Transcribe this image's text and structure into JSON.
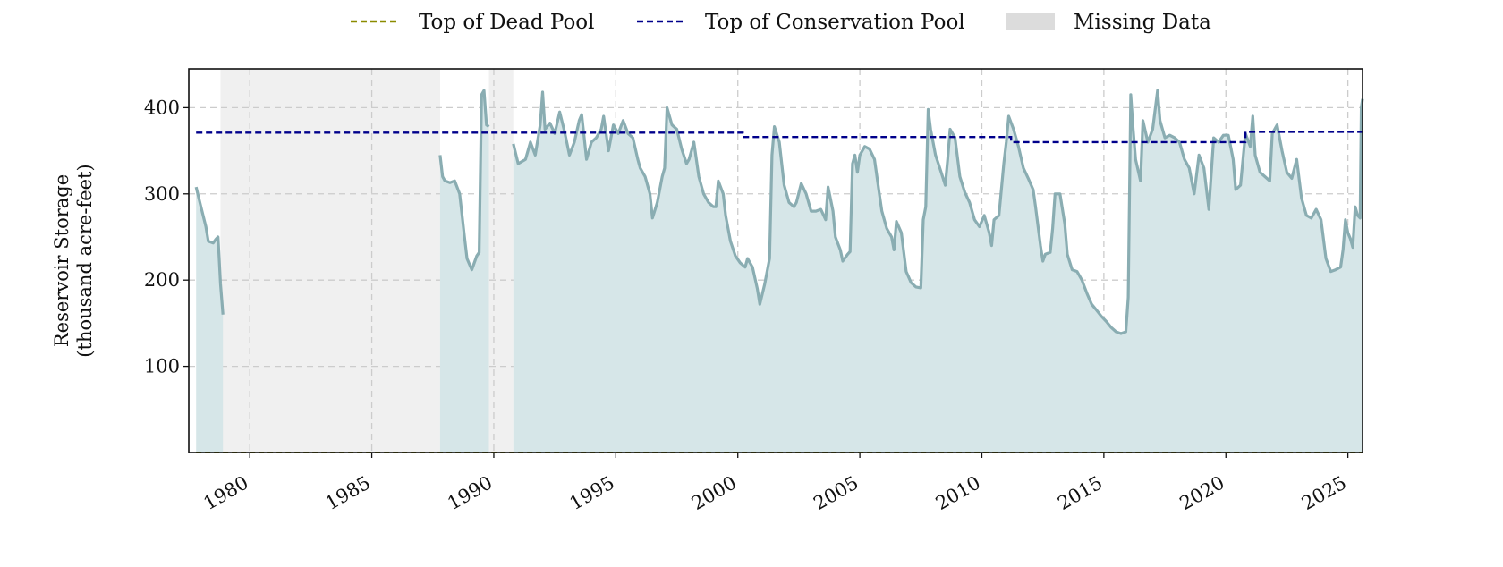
{
  "chart_data": {
    "type": "area",
    "ylabel_lines": [
      "Reservoir Storage",
      "(thousand acre-feet)"
    ],
    "xlim": [
      1977.5,
      2025.6
    ],
    "ylim": [
      0,
      445
    ],
    "x_ticks": [
      1980,
      1985,
      1990,
      1995,
      2000,
      2005,
      2010,
      2015,
      2020,
      2025
    ],
    "y_ticks": [
      100,
      200,
      300,
      400
    ],
    "grid": true,
    "legend_position": "top-center",
    "legend": [
      {
        "label": "Top of Dead Pool",
        "kind": "dash",
        "color": "#8b8b00"
      },
      {
        "label": "Top of Conservation Pool",
        "kind": "dash",
        "color": "#00008b"
      },
      {
        "label": "Missing Data",
        "kind": "box",
        "color": "#dcdcdc"
      }
    ],
    "colors": {
      "storage_line": "#8aadb2",
      "storage_fill": "#d6e6e8",
      "missing_fill": "#f0f0f0",
      "grid": "#cccccc"
    },
    "missing_data_ranges": [
      [
        1978.8,
        1987.8
      ],
      [
        1989.8,
        1990.8
      ]
    ],
    "series": [
      {
        "segments": [
          [
            [
              1977.8,
              308
            ],
            [
              1978.0,
              285
            ],
            [
              1978.2,
              262
            ],
            [
              1978.3,
              245
            ],
            [
              1978.5,
              243
            ],
            [
              1978.6,
              247
            ],
            [
              1978.7,
              250
            ],
            [
              1978.8,
              195
            ],
            [
              1978.9,
              160
            ]
          ],
          [
            [
              1987.8,
              345
            ],
            [
              1987.9,
              320
            ],
            [
              1988.0,
              315
            ],
            [
              1988.2,
              313
            ],
            [
              1988.4,
              315
            ],
            [
              1988.6,
              300
            ],
            [
              1988.8,
              250
            ],
            [
              1988.9,
              225
            ],
            [
              1989.1,
              212
            ],
            [
              1989.3,
              228
            ],
            [
              1989.4,
              232
            ],
            [
              1989.5,
              415
            ],
            [
              1989.6,
              420
            ],
            [
              1989.7,
              380
            ],
            [
              1989.8,
              378
            ]
          ],
          [
            [
              1990.8,
              358
            ],
            [
              1991.0,
              335
            ],
            [
              1991.3,
              340
            ],
            [
              1991.5,
              360
            ],
            [
              1991.7,
              345
            ],
            [
              1991.9,
              380
            ],
            [
              1992.0,
              418
            ],
            [
              1992.1,
              375
            ],
            [
              1992.3,
              382
            ],
            [
              1992.5,
              370
            ],
            [
              1992.7,
              395
            ],
            [
              1992.9,
              372
            ],
            [
              1993.1,
              345
            ],
            [
              1993.3,
              360
            ],
            [
              1993.5,
              385
            ],
            [
              1993.6,
              392
            ],
            [
              1993.8,
              340
            ],
            [
              1994.0,
              360
            ],
            [
              1994.2,
              365
            ],
            [
              1994.4,
              375
            ],
            [
              1994.5,
              390
            ],
            [
              1994.7,
              350
            ],
            [
              1994.9,
              380
            ],
            [
              1995.1,
              370
            ],
            [
              1995.3,
              385
            ],
            [
              1995.5,
              370
            ],
            [
              1995.7,
              365
            ],
            [
              1995.9,
              340
            ],
            [
              1996.0,
              330
            ],
            [
              1996.2,
              320
            ],
            [
              1996.4,
              300
            ],
            [
              1996.5,
              272
            ],
            [
              1996.7,
              290
            ],
            [
              1996.9,
              320
            ],
            [
              1997.0,
              330
            ],
            [
              1997.1,
              400
            ],
            [
              1997.3,
              380
            ],
            [
              1997.5,
              375
            ],
            [
              1997.7,
              352
            ],
            [
              1997.9,
              335
            ],
            [
              1998.0,
              340
            ],
            [
              1998.2,
              360
            ],
            [
              1998.4,
              320
            ],
            [
              1998.6,
              300
            ],
            [
              1998.8,
              290
            ],
            [
              1999.0,
              285
            ],
            [
              1999.1,
              285
            ],
            [
              1999.2,
              315
            ],
            [
              1999.4,
              300
            ],
            [
              1999.5,
              275
            ],
            [
              1999.7,
              245
            ],
            [
              1999.9,
              228
            ],
            [
              2000.1,
              220
            ],
            [
              2000.3,
              215
            ],
            [
              2000.4,
              225
            ],
            [
              2000.6,
              215
            ],
            [
              2000.8,
              190
            ],
            [
              2000.9,
              172
            ],
            [
              2001.1,
              195
            ],
            [
              2001.3,
              225
            ],
            [
              2001.4,
              345
            ],
            [
              2001.5,
              378
            ],
            [
              2001.7,
              360
            ],
            [
              2001.9,
              310
            ],
            [
              2002.1,
              290
            ],
            [
              2002.3,
              285
            ],
            [
              2002.4,
              290
            ],
            [
              2002.6,
              312
            ],
            [
              2002.8,
              300
            ],
            [
              2003.0,
              280
            ],
            [
              2003.2,
              280
            ],
            [
              2003.4,
              282
            ],
            [
              2003.6,
              270
            ],
            [
              2003.7,
              308
            ],
            [
              2003.9,
              280
            ],
            [
              2004.0,
              250
            ],
            [
              2004.2,
              235
            ],
            [
              2004.3,
              222
            ],
            [
              2004.5,
              230
            ],
            [
              2004.6,
              233
            ],
            [
              2004.7,
              335
            ],
            [
              2004.8,
              345
            ],
            [
              2004.9,
              325
            ],
            [
              2005.0,
              345
            ],
            [
              2005.2,
              355
            ],
            [
              2005.4,
              352
            ],
            [
              2005.6,
              340
            ],
            [
              2005.8,
              300
            ],
            [
              2005.9,
              280
            ],
            [
              2006.1,
              260
            ],
            [
              2006.3,
              250
            ],
            [
              2006.4,
              235
            ],
            [
              2006.5,
              268
            ],
            [
              2006.7,
              255
            ],
            [
              2006.9,
              210
            ],
            [
              2007.1,
              197
            ],
            [
              2007.3,
              192
            ],
            [
              2007.5,
              191
            ],
            [
              2007.6,
              270
            ],
            [
              2007.7,
              285
            ],
            [
              2007.8,
              398
            ],
            [
              2007.9,
              375
            ],
            [
              2008.1,
              345
            ],
            [
              2008.3,
              328
            ],
            [
              2008.5,
              310
            ],
            [
              2008.6,
              340
            ],
            [
              2008.7,
              375
            ],
            [
              2008.9,
              365
            ],
            [
              2009.1,
              320
            ],
            [
              2009.3,
              302
            ],
            [
              2009.5,
              290
            ],
            [
              2009.7,
              270
            ],
            [
              2009.9,
              262
            ],
            [
              2010.1,
              275
            ],
            [
              2010.3,
              255
            ],
            [
              2010.4,
              240
            ],
            [
              2010.5,
              270
            ],
            [
              2010.7,
              275
            ],
            [
              2010.9,
              335
            ],
            [
              2011.0,
              360
            ],
            [
              2011.1,
              390
            ],
            [
              2011.3,
              375
            ],
            [
              2011.5,
              355
            ],
            [
              2011.7,
              330
            ],
            [
              2011.9,
              318
            ],
            [
              2012.1,
              305
            ],
            [
              2012.2,
              285
            ],
            [
              2012.4,
              240
            ],
            [
              2012.5,
              222
            ],
            [
              2012.6,
              230
            ],
            [
              2012.8,
              232
            ],
            [
              2012.9,
              260
            ],
            [
              2013.0,
              300
            ],
            [
              2013.2,
              300
            ],
            [
              2013.4,
              265
            ],
            [
              2013.5,
              230
            ],
            [
              2013.7,
              212
            ],
            [
              2013.9,
              210
            ],
            [
              2014.1,
              200
            ],
            [
              2014.3,
              185
            ],
            [
              2014.5,
              172
            ],
            [
              2014.7,
              165
            ],
            [
              2014.9,
              158
            ],
            [
              2015.1,
              152
            ],
            [
              2015.3,
              145
            ],
            [
              2015.5,
              140
            ],
            [
              2015.7,
              138
            ],
            [
              2015.9,
              140
            ],
            [
              2016.0,
              180
            ],
            [
              2016.1,
              415
            ],
            [
              2016.2,
              375
            ],
            [
              2016.3,
              340
            ],
            [
              2016.5,
              315
            ],
            [
              2016.6,
              385
            ],
            [
              2016.8,
              360
            ],
            [
              2017.0,
              375
            ],
            [
              2017.2,
              420
            ],
            [
              2017.3,
              385
            ],
            [
              2017.5,
              365
            ],
            [
              2017.7,
              368
            ],
            [
              2017.9,
              365
            ],
            [
              2018.1,
              360
            ],
            [
              2018.3,
              340
            ],
            [
              2018.5,
              330
            ],
            [
              2018.7,
              300
            ],
            [
              2018.9,
              345
            ],
            [
              2019.1,
              330
            ],
            [
              2019.3,
              282
            ],
            [
              2019.5,
              365
            ],
            [
              2019.7,
              360
            ],
            [
              2019.9,
              368
            ],
            [
              2020.1,
              368
            ],
            [
              2020.3,
              340
            ],
            [
              2020.4,
              305
            ],
            [
              2020.6,
              310
            ],
            [
              2020.8,
              370
            ],
            [
              2021.0,
              355
            ],
            [
              2021.1,
              390
            ],
            [
              2021.2,
              345
            ],
            [
              2021.4,
              325
            ],
            [
              2021.6,
              320
            ],
            [
              2021.8,
              315
            ],
            [
              2021.9,
              370
            ],
            [
              2022.1,
              380
            ],
            [
              2022.3,
              350
            ],
            [
              2022.5,
              325
            ],
            [
              2022.7,
              318
            ],
            [
              2022.9,
              340
            ],
            [
              2023.1,
              295
            ],
            [
              2023.3,
              275
            ],
            [
              2023.5,
              272
            ],
            [
              2023.7,
              282
            ],
            [
              2023.9,
              270
            ],
            [
              2024.1,
              225
            ],
            [
              2024.3,
              210
            ],
            [
              2024.5,
              212
            ],
            [
              2024.7,
              215
            ],
            [
              2024.8,
              235
            ],
            [
              2024.9,
              270
            ],
            [
              2025.0,
              255
            ],
            [
              2025.1,
              248
            ],
            [
              2025.2,
              238
            ],
            [
              2025.3,
              285
            ],
            [
              2025.4,
              275
            ],
            [
              2025.5,
              272
            ],
            [
              2025.55,
              400
            ],
            [
              2025.6,
              410
            ]
          ]
        ]
      }
    ],
    "conservation_pool": [
      [
        1977.8,
        371
      ],
      [
        2000.2,
        371
      ],
      [
        2000.2,
        366
      ],
      [
        2011.2,
        366
      ],
      [
        2011.2,
        360
      ],
      [
        2020.8,
        360
      ],
      [
        2020.8,
        372
      ],
      [
        2025.6,
        372
      ]
    ],
    "dead_pool": [
      [
        1977.8,
        0
      ],
      [
        2025.6,
        0
      ]
    ]
  }
}
